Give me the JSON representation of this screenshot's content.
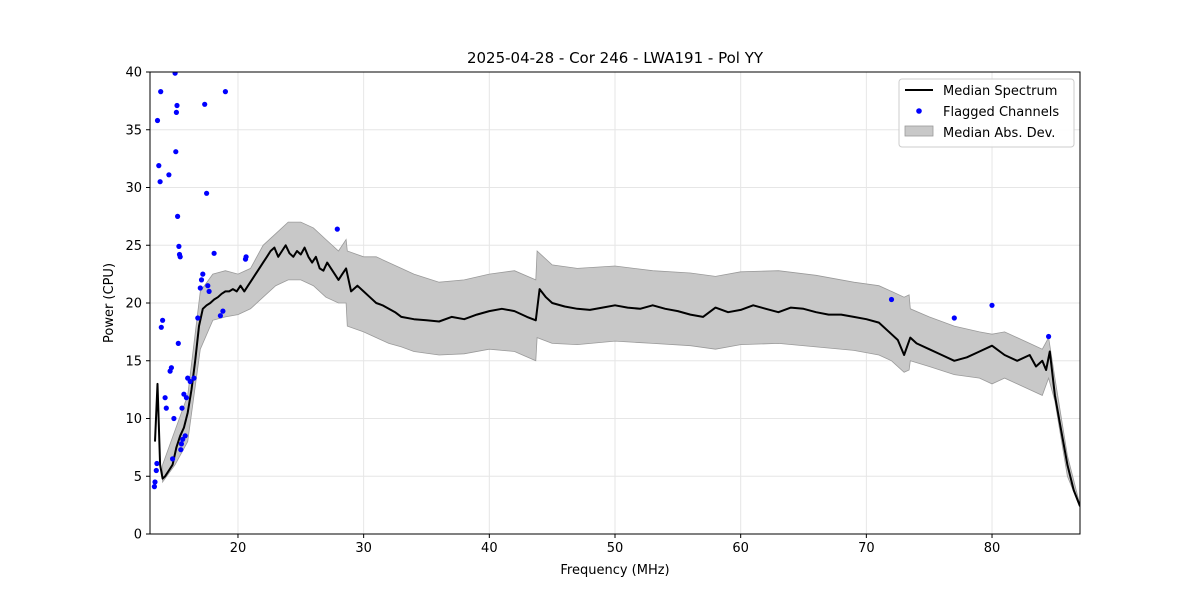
{
  "chart_data": {
    "type": "line",
    "title": "2025-04-28 - Cor 246 - LWA191 - Pol YY",
    "xlabel": "Frequency (MHz)",
    "ylabel": "Power (CPU)",
    "xlim": [
      13,
      87
    ],
    "ylim": [
      0,
      40
    ],
    "xticks": [
      20,
      30,
      40,
      50,
      60,
      70,
      80
    ],
    "yticks": [
      0,
      5,
      10,
      15,
      20,
      25,
      30,
      35,
      40
    ],
    "grid": true,
    "legend_position": "top-right",
    "colors": {
      "median": "#000000",
      "flagged": "#0000ff",
      "band": "#c8c8c8",
      "band_edge": "#9a9a9a",
      "grid": "#e6e6e6"
    },
    "series": [
      {
        "name": "Median Spectrum",
        "kind": "line",
        "x": [
          13.4,
          13.6,
          13.8,
          14.0,
          14.2,
          14.5,
          14.8,
          15.1,
          15.4,
          15.7,
          16.0,
          16.3,
          16.6,
          16.9,
          17.2,
          17.5,
          17.8,
          18.1,
          18.4,
          18.7,
          19.0,
          19.3,
          19.6,
          19.9,
          20.2,
          20.5,
          20.8,
          21.1,
          21.4,
          21.7,
          22.0,
          22.3,
          22.6,
          22.9,
          23.2,
          23.5,
          23.8,
          24.1,
          24.4,
          24.7,
          25.0,
          25.3,
          25.6,
          25.9,
          26.2,
          26.5,
          26.8,
          27.1,
          27.4,
          27.7,
          28.0,
          28.3,
          28.6,
          29.0,
          29.5,
          30.0,
          30.5,
          31.0,
          31.5,
          32.0,
          32.5,
          33.0,
          34.0,
          35.0,
          36.0,
          37.0,
          38.0,
          39.0,
          40.0,
          41.0,
          42.0,
          43.0,
          43.7,
          44.0,
          44.5,
          45.0,
          46.0,
          47.0,
          48.0,
          49.0,
          50.0,
          51.0,
          52.0,
          53.0,
          54.0,
          55.0,
          56.0,
          57.0,
          58.0,
          59.0,
          60.0,
          61.0,
          62.0,
          63.0,
          64.0,
          65.0,
          66.0,
          67.0,
          68.0,
          69.0,
          70.0,
          71.0,
          72.0,
          72.5,
          73.0,
          73.5,
          74.0,
          75.0,
          76.0,
          77.0,
          78.0,
          79.0,
          80.0,
          81.0,
          82.0,
          83.0,
          83.5,
          84.0,
          84.3,
          84.6,
          85.0,
          85.5,
          86.0,
          86.5,
          87.0
        ],
        "y": [
          8.0,
          13.0,
          6.0,
          4.8,
          5.0,
          5.5,
          6.0,
          7.5,
          8.5,
          9.2,
          10.5,
          12.5,
          15.0,
          18.0,
          19.5,
          19.8,
          20.0,
          20.3,
          20.5,
          20.8,
          21.0,
          21.0,
          21.2,
          21.0,
          21.5,
          21.0,
          21.5,
          22.0,
          22.5,
          23.0,
          23.5,
          24.0,
          24.5,
          24.8,
          24.0,
          24.5,
          25.0,
          24.3,
          24.0,
          24.5,
          24.2,
          24.8,
          24.0,
          23.5,
          24.0,
          23.0,
          22.8,
          23.5,
          23.0,
          22.5,
          22.0,
          22.5,
          23.0,
          21.0,
          21.5,
          21.0,
          20.5,
          20.0,
          19.8,
          19.5,
          19.2,
          18.8,
          18.6,
          18.5,
          18.4,
          18.8,
          18.6,
          19.0,
          19.3,
          19.5,
          19.3,
          18.8,
          18.5,
          21.2,
          20.5,
          20.0,
          19.7,
          19.5,
          19.4,
          19.6,
          19.8,
          19.6,
          19.5,
          19.8,
          19.5,
          19.3,
          19.0,
          18.8,
          19.6,
          19.2,
          19.4,
          19.8,
          19.5,
          19.2,
          19.6,
          19.5,
          19.2,
          19.0,
          19.0,
          18.8,
          18.6,
          18.3,
          17.3,
          16.8,
          15.5,
          17.0,
          16.5,
          16.0,
          15.5,
          15.0,
          15.3,
          15.8,
          16.3,
          15.5,
          15.0,
          15.5,
          14.5,
          15.0,
          14.2,
          15.8,
          12.0,
          9.0,
          6.0,
          3.8,
          2.4
        ]
      },
      {
        "name": "Flagged Channels",
        "kind": "scatter",
        "x": [
          13.35,
          13.4,
          13.5,
          13.55,
          13.6,
          13.7,
          13.8,
          13.85,
          13.9,
          14.0,
          14.2,
          14.3,
          14.5,
          14.6,
          14.7,
          14.8,
          14.9,
          15.0,
          15.05,
          15.1,
          15.15,
          15.2,
          15.25,
          15.3,
          15.35,
          15.4,
          15.45,
          15.5,
          15.55,
          15.6,
          15.7,
          15.8,
          15.9,
          16.0,
          16.2,
          16.5,
          16.8,
          17.0,
          17.1,
          17.2,
          17.35,
          17.5,
          17.6,
          17.7,
          18.1,
          18.6,
          18.8,
          19.0,
          20.6,
          20.65,
          27.9,
          72.0,
          77.0,
          80.0,
          84.5
        ],
        "y": [
          4.1,
          4.5,
          5.5,
          6.1,
          35.8,
          31.9,
          30.5,
          38.3,
          17.9,
          18.5,
          11.8,
          10.9,
          31.1,
          14.1,
          14.4,
          6.5,
          10.0,
          39.9,
          33.1,
          36.5,
          37.1,
          27.5,
          16.5,
          24.9,
          24.2,
          24.0,
          7.3,
          7.8,
          10.9,
          8.2,
          12.1,
          8.5,
          11.8,
          13.5,
          13.2,
          13.5,
          18.7,
          21.3,
          22.0,
          22.5,
          37.2,
          29.5,
          21.5,
          21.0,
          24.3,
          18.9,
          19.3,
          38.3,
          23.8,
          24.0,
          26.4,
          20.3,
          18.7,
          19.8,
          17.1
        ]
      },
      {
        "name": "Median Abs. Dev.",
        "kind": "band",
        "x": [
          14.0,
          15.0,
          16.0,
          17.0,
          18.0,
          19.0,
          20.0,
          21.0,
          22.0,
          23.0,
          24.0,
          25.0,
          26.0,
          27.0,
          28.0,
          28.6,
          28.7,
          30.0,
          31.0,
          32.0,
          33.0,
          34.0,
          36.0,
          38.0,
          40.0,
          42.0,
          43.7,
          43.8,
          45.0,
          47.0,
          50.0,
          53.0,
          56.0,
          58.0,
          60.0,
          63.0,
          66.0,
          69.0,
          71.0,
          72.0,
          73.0,
          73.4,
          73.5,
          75.0,
          77.0,
          79.0,
          80.0,
          81.0,
          82.0,
          83.0,
          84.0,
          84.5,
          85.0,
          86.0,
          87.0
        ],
        "lower": [
          4.5,
          6.0,
          8.0,
          16.0,
          18.5,
          18.8,
          19.0,
          19.5,
          20.5,
          21.5,
          22.0,
          22.0,
          21.5,
          20.5,
          20.0,
          20.0,
          18.0,
          17.5,
          17.0,
          16.5,
          16.2,
          15.8,
          15.5,
          15.6,
          16.0,
          15.8,
          15.0,
          17.0,
          16.5,
          16.4,
          16.7,
          16.5,
          16.3,
          16.0,
          16.4,
          16.5,
          16.2,
          15.9,
          15.5,
          15.0,
          14.0,
          14.2,
          15.0,
          14.5,
          13.8,
          13.5,
          13.0,
          13.5,
          13.0,
          12.5,
          12.0,
          13.5,
          11.5,
          5.0,
          2.3
        ],
        "upper": [
          6.0,
          9.0,
          12.0,
          21.0,
          22.5,
          22.8,
          22.5,
          23.0,
          25.0,
          26.0,
          27.0,
          27.0,
          26.5,
          25.5,
          24.5,
          25.5,
          24.5,
          24.0,
          24.0,
          23.5,
          23.0,
          22.5,
          21.8,
          22.0,
          22.5,
          22.8,
          22.0,
          24.5,
          23.3,
          23.0,
          23.2,
          22.8,
          22.6,
          22.3,
          22.7,
          22.8,
          22.4,
          21.8,
          21.5,
          21.0,
          20.5,
          20.7,
          19.5,
          18.8,
          18.0,
          17.5,
          17.3,
          17.5,
          17.0,
          16.5,
          16.0,
          17.0,
          13.5,
          6.8,
          2.5
        ]
      }
    ]
  }
}
